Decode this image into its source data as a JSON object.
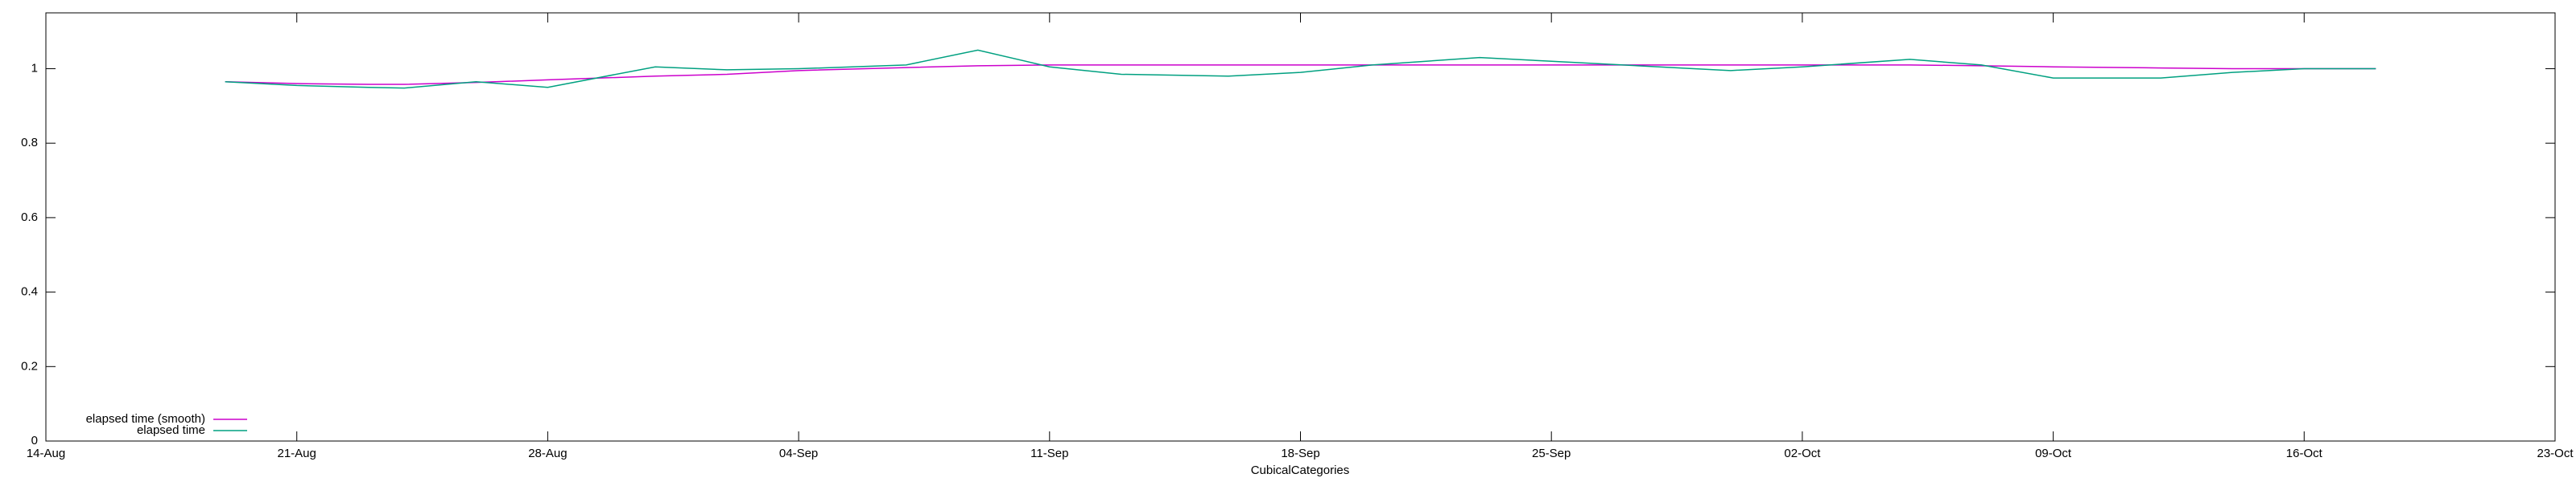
{
  "chart_data": {
    "type": "line",
    "x_label": "CubicalCategories",
    "x": [
      "19-Aug",
      "21-Aug",
      "23-Aug",
      "24-Aug",
      "26-Aug",
      "28-Aug",
      "31-Aug",
      "02-Sep",
      "04-Sep",
      "07-Sep",
      "09-Sep",
      "11-Sep",
      "13-Sep",
      "16-Sep",
      "18-Sep",
      "20-Sep",
      "23-Sep",
      "25-Sep",
      "28-Sep",
      "30-Sep",
      "02-Oct",
      "05-Oct",
      "07-Oct",
      "09-Oct",
      "12-Oct",
      "14-Oct",
      "16-Oct",
      "18-Oct"
    ],
    "series": [
      {
        "name": "elapsed time (smooth)",
        "color": "#cc00cc",
        "values": [
          0.965,
          0.96,
          0.958,
          0.958,
          0.963,
          0.97,
          0.98,
          0.985,
          0.995,
          1.003,
          1.008,
          1.01,
          1.01,
          1.01,
          1.01,
          1.01,
          1.01,
          1.01,
          1.01,
          1.01,
          1.01,
          1.01,
          1.008,
          1.005,
          1.002,
          1.0,
          1.0,
          1.0
        ]
      },
      {
        "name": "elapsed time",
        "color": "#00a080",
        "values": [
          0.965,
          0.955,
          0.95,
          0.948,
          0.965,
          0.95,
          1.005,
          0.997,
          1.0,
          1.01,
          1.05,
          1.005,
          0.985,
          0.98,
          0.99,
          1.01,
          1.03,
          1.02,
          1.005,
          0.995,
          1.005,
          1.025,
          1.01,
          0.975,
          0.975,
          0.99,
          1.0,
          1.0
        ]
      }
    ],
    "xlim": [
      "14-Aug",
      "23-Oct"
    ],
    "xticks": [
      "14-Aug",
      "21-Aug",
      "28-Aug",
      "04-Sep",
      "11-Sep",
      "18-Sep",
      "25-Sep",
      "02-Oct",
      "09-Oct",
      "16-Oct",
      "23-Oct"
    ],
    "ylim": [
      0,
      1.15
    ],
    "yticks": [
      0,
      0.2,
      0.4,
      0.6,
      0.8,
      1
    ],
    "legend": "bottom-left",
    "grid": false
  }
}
